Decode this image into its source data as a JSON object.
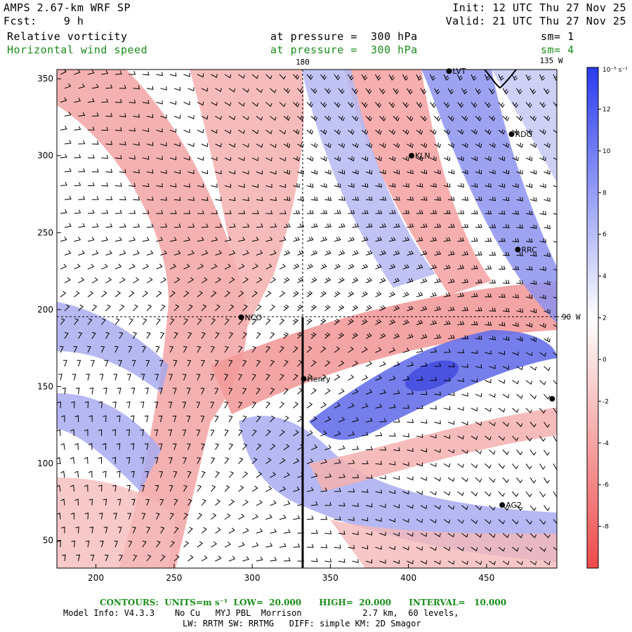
{
  "header": {
    "model": "AMPS 2.67-km WRF SP",
    "forecast": "Fcst:    9 h",
    "init": "Init: 12 UTC Thu 27 Nov 25",
    "valid": "Valid: 21 UTC Thu 27 Nov 25",
    "field1_name": "Relative vorticity",
    "field1_level": "at pressure =  300 hPa",
    "field1_smooth": "sm= 1",
    "field2_name": "Horizontal wind speed",
    "field2_level": "at pressure =  300 hPa",
    "field2_smooth": "sm= 4"
  },
  "map_labels": {
    "lon_180": "180",
    "lon_135w": "135 W",
    "lon_90w": "90 W"
  },
  "stations": [
    {
      "name": "NCO",
      "x": 293,
      "y": 195
    },
    {
      "name": "Henry",
      "x": 333,
      "y": 155
    },
    {
      "name": "KLN",
      "x": 402,
      "y": 300
    },
    {
      "name": "RDG",
      "x": 466,
      "y": 314
    },
    {
      "name": "RRC",
      "x": 470,
      "y": 239
    },
    {
      "name": "AG2",
      "x": 460,
      "y": 73
    },
    {
      "name": "LVT",
      "x": 426,
      "y": 355
    },
    {
      "name": "",
      "x": 492,
      "y": 142
    }
  ],
  "axes": {
    "x_ticks": [
      "200",
      "250",
      "300",
      "350",
      "400",
      "450"
    ],
    "y_ticks": [
      "50",
      "100",
      "150",
      "200",
      "250",
      "300",
      "350"
    ],
    "x_range": [
      175,
      495
    ],
    "y_range": [
      32,
      356
    ]
  },
  "colorbar": {
    "unit_label": "10⁻⁵ s⁻¹",
    "labels": [
      "12",
      "10",
      "8",
      "6",
      "4",
      "2",
      "0",
      "-2",
      "-4",
      "-6",
      "-8"
    ],
    "range": [
      -10,
      14
    ],
    "colors": {
      "positive": "#3333ee",
      "zero": "#ffffff",
      "negative": "#ee3333"
    }
  },
  "footer": {
    "contours": "CONTOURS:  UNITS=m s⁻¹  LOW=  20.000      HIGH=  20.000      INTERVAL=   10.000",
    "model_info": "Model Info: V4.3.3    No Cu   MYJ PBL  Morrison            2.7 km,  60 levels,",
    "physics": "LW: RRTM SW: RRTMG   DIFF: simple KM: 2D Smagor"
  }
}
